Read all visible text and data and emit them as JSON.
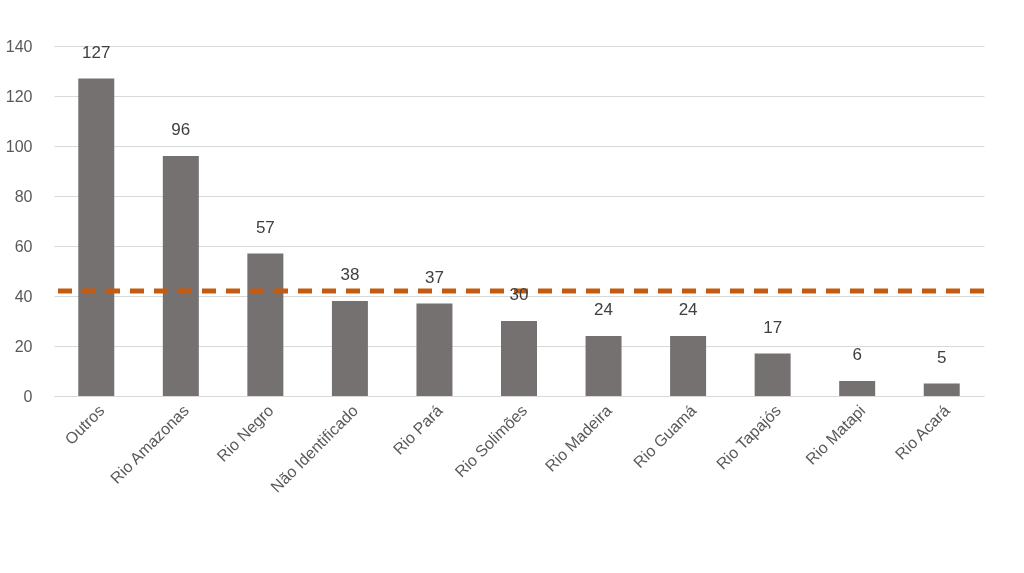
{
  "chart_data": {
    "type": "bar",
    "categories": [
      "Outros",
      "Rio Amazonas",
      "Rio Negro",
      "Não Identificado",
      "Rio Pará",
      "Rio Solimões",
      "Rio Madeira",
      "Rio Guamá",
      "Rio Tapajós",
      "Rio Matapi",
      "Rio Acará"
    ],
    "values": [
      127,
      96,
      57,
      38,
      37,
      30,
      24,
      24,
      17,
      6,
      5
    ],
    "color": "#767171",
    "ylim": [
      0,
      140
    ],
    "yticks": [
      0,
      20,
      40,
      60,
      80,
      100,
      120,
      140
    ],
    "grid": "y",
    "data_labels": true,
    "ref_lines": [
      {
        "axis": "y",
        "value": 42,
        "color": "#c55a11",
        "line_style": "dashed"
      }
    ]
  }
}
